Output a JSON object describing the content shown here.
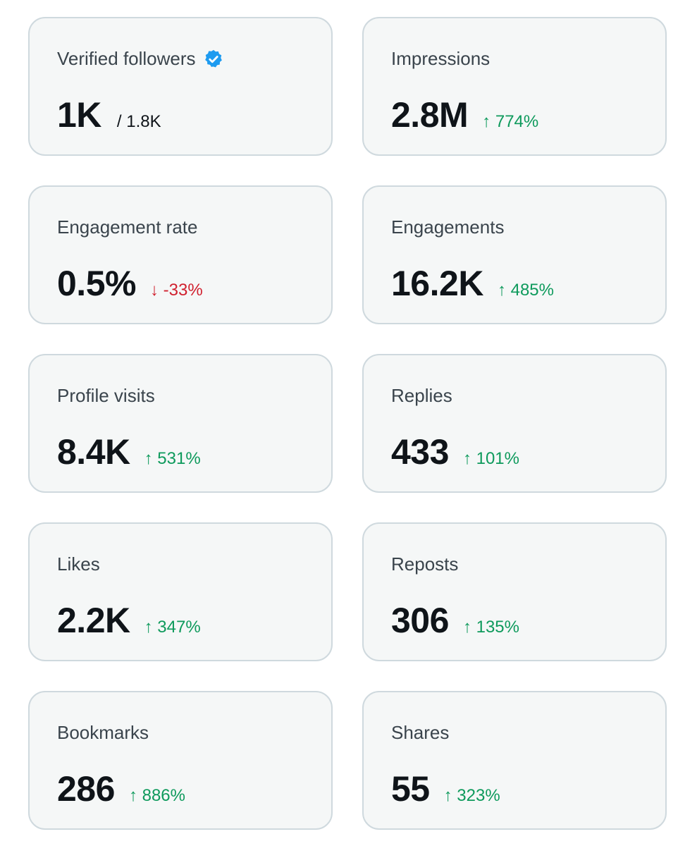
{
  "colors": {
    "card_bg": "#f5f7f7",
    "card_border": "#cfd9de",
    "label": "#3a444c",
    "value": "#0f1419",
    "positive": "#0e9a5c",
    "negative": "#d0202e",
    "verified_badge": "#1d9bf0"
  },
  "metrics": {
    "verified_followers": {
      "label": "Verified followers",
      "value": "1K",
      "total": "/ 1.8K",
      "badge_icon": "verified-badge-icon"
    },
    "impressions": {
      "label": "Impressions",
      "value": "2.8M",
      "change": "↑ 774%",
      "direction": "up"
    },
    "engagement_rate": {
      "label": "Engagement rate",
      "value": "0.5%",
      "change": "↓ -33%",
      "direction": "down"
    },
    "engagements": {
      "label": "Engagements",
      "value": "16.2K",
      "change": "↑ 485%",
      "direction": "up"
    },
    "profile_visits": {
      "label": "Profile visits",
      "value": "8.4K",
      "change": "↑ 531%",
      "direction": "up"
    },
    "replies": {
      "label": "Replies",
      "value": "433",
      "change": "↑ 101%",
      "direction": "up"
    },
    "likes": {
      "label": "Likes",
      "value": "2.2K",
      "change": "↑ 347%",
      "direction": "up"
    },
    "reposts": {
      "label": "Reposts",
      "value": "306",
      "change": "↑ 135%",
      "direction": "up"
    },
    "bookmarks": {
      "label": "Bookmarks",
      "value": "286",
      "change": "↑ 886%",
      "direction": "up"
    },
    "shares": {
      "label": "Shares",
      "value": "55",
      "change": "↑ 323%",
      "direction": "up"
    }
  }
}
